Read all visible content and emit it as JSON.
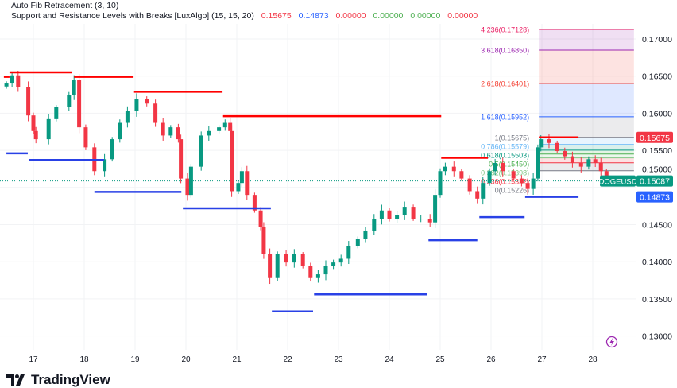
{
  "legend": {
    "fib_indicator": "Auto Fib Retracement (3, 10)",
    "sr_indicator": "Support and Resistance Levels with Breaks [LuxAlgo] (15, 15, 20)",
    "sr_values": [
      {
        "text": "0.15675",
        "color": "#f23645"
      },
      {
        "text": "0.14873",
        "color": "#2962ff"
      },
      {
        "text": "0.00000",
        "color": "#f23645"
      },
      {
        "text": "0.00000",
        "color": "#4caf50"
      },
      {
        "text": "0.00000",
        "color": "#4caf50"
      },
      {
        "text": "0.00000",
        "color": "#f23645"
      }
    ]
  },
  "symbol": "DOGEUSD",
  "logo": "TradingView",
  "colors": {
    "up": "#089981",
    "down": "#f23645",
    "resistance": "#ff0000",
    "support": "#2941e6",
    "grid": "#f2f3f5"
  },
  "chart_data": {
    "type": "candlestick",
    "x_ticks": [
      "17",
      "18",
      "19",
      "20",
      "21",
      "22",
      "23",
      "24",
      "25",
      "26",
      "27",
      "28"
    ],
    "y_ticks": [
      "0.17000",
      "0.16500",
      "0.16000",
      "0.15500",
      "0.15000",
      "0.14500",
      "0.14000",
      "0.13500",
      "0.13000"
    ],
    "ylim": [
      0.1285,
      0.1725
    ],
    "grid": true,
    "x": [
      16.47,
      16.58,
      16.7,
      16.9,
      17.0,
      17.05,
      17.3,
      17.45,
      17.7,
      17.8,
      17.9,
      18.03,
      18.2,
      18.4,
      18.55,
      18.7,
      18.85,
      19.03,
      19.23,
      19.4,
      19.55,
      19.7,
      19.85,
      19.9,
      20.03,
      20.1,
      20.3,
      20.45,
      20.65,
      20.77,
      20.87,
      20.9,
      21.03,
      21.1,
      21.2,
      21.35,
      21.47,
      21.53,
      21.65,
      21.8,
      21.97,
      22.13,
      22.3,
      22.45,
      22.6,
      22.75,
      22.9,
      23.05,
      23.2,
      23.38,
      23.53,
      23.7,
      23.85,
      24.0,
      24.15,
      24.3,
      24.47,
      24.62,
      24.8,
      24.9,
      25.0,
      25.1,
      25.27,
      25.42,
      25.58,
      25.73,
      25.84,
      25.97,
      26.08,
      26.23,
      26.44,
      26.6,
      26.72,
      26.83,
      26.92,
      26.98,
      27.14,
      27.3,
      27.45,
      27.6,
      27.77,
      27.92,
      28.05,
      28.16,
      28.27
    ],
    "close": [
      0.164,
      0.1651,
      0.1635,
      0.1597,
      0.1576,
      0.1565,
      0.1592,
      0.1608,
      0.1624,
      0.1645,
      0.1581,
      0.1554,
      0.1522,
      0.1538,
      0.1565,
      0.1587,
      0.1603,
      0.1619,
      0.1613,
      0.1587,
      0.157,
      0.1581,
      0.1565,
      0.1512,
      0.149,
      0.1528,
      0.157,
      0.1576,
      0.1581,
      0.1587,
      0.1576,
      0.1495,
      0.1506,
      0.1522,
      0.149,
      0.1469,
      0.1447,
      0.141,
      0.1378,
      0.141,
      0.1399,
      0.141,
      0.1394,
      0.1378,
      0.1383,
      0.1394,
      0.1399,
      0.1404,
      0.1421,
      0.1431,
      0.1442,
      0.1458,
      0.1469,
      0.1458,
      0.1463,
      0.1474,
      0.1458,
      0.1458,
      0.1453,
      0.149,
      0.1522,
      0.1528,
      0.1522,
      0.1512,
      0.1495,
      0.1485,
      0.1506,
      0.1522,
      0.1533,
      0.1522,
      0.1512,
      0.1506,
      0.1498,
      0.1512,
      0.1554,
      0.1565,
      0.156,
      0.1549,
      0.1542,
      0.1533,
      0.1528,
      0.1538,
      0.1533,
      0.1522,
      0.15087
    ],
    "resistance_levels": [
      {
        "from": 16.42,
        "to": 16.53,
        "price": 0.1649
      },
      {
        "from": 16.53,
        "to": 17.75,
        "price": 0.1655
      },
      {
        "from": 17.8,
        "to": 18.97,
        "price": 0.1649
      },
      {
        "from": 18.98,
        "to": 20.72,
        "price": 0.1629
      },
      {
        "from": 20.73,
        "to": 25.02,
        "price": 0.1596
      },
      {
        "from": 25.02,
        "to": 25.94,
        "price": 0.154
      },
      {
        "from": 26.94,
        "to": 27.72,
        "price": 0.15675
      }
    ],
    "support_levels": [
      {
        "from": 16.47,
        "to": 16.89,
        "price": 0.1546
      },
      {
        "from": 16.91,
        "to": 18.39,
        "price": 0.1537
      },
      {
        "from": 18.2,
        "to": 19.91,
        "price": 0.1494
      },
      {
        "from": 19.94,
        "to": 21.67,
        "price": 0.1472
      },
      {
        "from": 21.69,
        "to": 22.5,
        "price": 0.1333
      },
      {
        "from": 22.52,
        "to": 24.75,
        "price": 0.1356
      },
      {
        "from": 24.77,
        "to": 25.73,
        "price": 0.1429
      },
      {
        "from": 25.77,
        "to": 26.66,
        "price": 0.146
      },
      {
        "from": 26.67,
        "to": 27.72,
        "price": 0.14873
      }
    ],
    "fib_levels": [
      {
        "label": "4.236(0.17128)",
        "price": 0.17128,
        "color": "#e91e63"
      },
      {
        "label": "3.618(0.16850)",
        "price": 0.1685,
        "color": "#9c27b0"
      },
      {
        "label": "2.618(0.16401)",
        "price": 0.16401,
        "color": "#f44336"
      },
      {
        "label": "1.618(0.15952)",
        "price": 0.15952,
        "color": "#2962ff"
      },
      {
        "label": "1(0.15675)",
        "price": 0.15675,
        "color": "#787b86"
      },
      {
        "label": "0.786(0.15579)",
        "price": 0.15579,
        "color": "#64b5f6"
      },
      {
        "label": "0.618(0.15503)",
        "price": 0.15503,
        "color": "#089981"
      },
      {
        "label": "0.5(0.15450)",
        "price": 0.1545,
        "color": "#4caf50"
      },
      {
        "label": "0.382(0.15398)",
        "price": 0.15398,
        "color": "#81c784"
      },
      {
        "label": "0.236(0.15332)",
        "price": 0.15332,
        "color": "#f23645"
      },
      {
        "label": "0(0.15226)",
        "price": 0.15226,
        "color": "#787b86"
      }
    ],
    "fib_range": [
      26.94,
      28.81
    ],
    "price_labels": [
      {
        "text": "0.15675",
        "price": 0.15675,
        "bg": "#f23645"
      },
      {
        "text": "0.15087",
        "price": 0.15087,
        "bg": "#089981"
      },
      {
        "text": "0.14873",
        "price": 0.14873,
        "bg": "#2962ff"
      }
    ],
    "last_price": 0.15087
  }
}
